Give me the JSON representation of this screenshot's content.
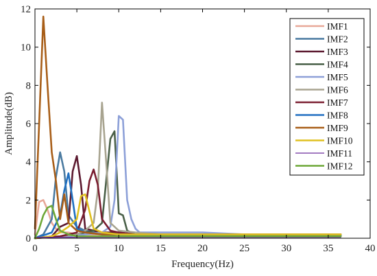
{
  "chart_data": {
    "type": "line",
    "title": "",
    "xlabel": "Frequency(Hz)",
    "ylabel": "Amplitude(dB)",
    "xlim": [
      0,
      40
    ],
    "ylim": [
      0,
      12
    ],
    "xticks": [
      "0",
      "5",
      "10",
      "15",
      "20",
      "25",
      "30",
      "35",
      "40"
    ],
    "yticks": [
      "0",
      "2",
      "4",
      "6",
      "8",
      "10",
      "12"
    ],
    "grid": false,
    "legend_position": "top-right",
    "series": [
      {
        "name": "IMF1",
        "color": "#e8a898",
        "x": [
          0,
          0.5,
          1,
          1.5,
          2,
          2.5,
          3,
          4,
          5,
          6,
          8,
          10,
          12,
          15,
          20,
          25,
          30,
          35,
          36.5
        ],
        "y": [
          0.2,
          1.9,
          2.0,
          1.5,
          0.8,
          0.5,
          0.3,
          0.3,
          0.2,
          0.2,
          0.2,
          0.15,
          0.2,
          0.15,
          0.15,
          0.15,
          0.15,
          0.15,
          0.15
        ]
      },
      {
        "name": "IMF2",
        "color": "#4a7aa0",
        "x": [
          0,
          1,
          2,
          2.5,
          3,
          3.5,
          4,
          5,
          6,
          7,
          8,
          10,
          12,
          15,
          20,
          25,
          30,
          35,
          36.5
        ],
        "y": [
          0,
          0.2,
          1.0,
          3.2,
          4.5,
          3.5,
          1.2,
          0.6,
          0.4,
          0.3,
          0.3,
          0.2,
          0.2,
          0.2,
          0.2,
          0.2,
          0.2,
          0.2,
          0.2
        ]
      },
      {
        "name": "IMF3",
        "color": "#5c1a30",
        "x": [
          0,
          2,
          3,
          4,
          4.5,
          5,
          5.5,
          6,
          7,
          8,
          10,
          12,
          15,
          20,
          25,
          30,
          35,
          36.5
        ],
        "y": [
          0,
          0.1,
          0.6,
          0.8,
          3.5,
          4.3,
          2.8,
          0.5,
          0.4,
          0.3,
          0.3,
          0.2,
          0.2,
          0.2,
          0.2,
          0.2,
          0.2,
          0.2
        ]
      },
      {
        "name": "IMF4",
        "color": "#4a6048",
        "x": [
          0,
          3,
          5,
          6,
          7,
          8,
          8.5,
          9,
          9.5,
          10,
          10.5,
          11,
          12,
          15,
          20,
          25,
          30,
          35,
          36.5
        ],
        "y": [
          0,
          0.1,
          0.2,
          0.3,
          0.4,
          0.8,
          3.0,
          5.2,
          5.6,
          1.3,
          1.2,
          0.4,
          0.2,
          0.2,
          0.2,
          0.2,
          0.2,
          0.2,
          0.2
        ]
      },
      {
        "name": "IMF5",
        "color": "#8da0d8",
        "x": [
          0,
          4,
          6,
          8,
          9,
          9.5,
          10,
          10.5,
          11,
          11.5,
          12,
          12.5,
          15,
          20,
          25,
          30,
          35,
          36.5
        ],
        "y": [
          0,
          0.1,
          0.2,
          0.3,
          0.6,
          2.0,
          6.4,
          6.2,
          2.0,
          1.0,
          0.5,
          0.3,
          0.3,
          0.3,
          0.2,
          0.2,
          0.2,
          0.2
        ]
      },
      {
        "name": "IMF6",
        "color": "#a8a490",
        "x": [
          0,
          3,
          5,
          6,
          7,
          7.5,
          8,
          8.5,
          9,
          10,
          12,
          15,
          20,
          25,
          30,
          35,
          36.5
        ],
        "y": [
          0,
          0.1,
          0.2,
          0.4,
          0.8,
          2.5,
          7.1,
          4.0,
          0.8,
          0.4,
          0.3,
          0.2,
          0.2,
          0.2,
          0.2,
          0.2,
          0.2
        ]
      },
      {
        "name": "IMF7",
        "color": "#7a1e30",
        "x": [
          0,
          3,
          5,
          6,
          6.5,
          7,
          7.5,
          8,
          9,
          10,
          12,
          15,
          20,
          25,
          30,
          35,
          36.5
        ],
        "y": [
          0,
          0.1,
          0.3,
          1.5,
          3.0,
          3.6,
          2.8,
          1.0,
          0.4,
          0.3,
          0.2,
          0.2,
          0.2,
          0.2,
          0.2,
          0.2,
          0.2
        ]
      },
      {
        "name": "IMF8",
        "color": "#1f6fc0",
        "x": [
          0,
          2,
          3,
          3.5,
          4,
          4.5,
          5,
          6,
          8,
          10,
          12,
          15,
          20,
          25,
          30,
          35,
          36.5
        ],
        "y": [
          0,
          0.3,
          1.2,
          2.5,
          3.4,
          2.0,
          0.5,
          0.3,
          0.2,
          0.2,
          0.15,
          0.15,
          0.15,
          0.15,
          0.15,
          0.15,
          0.15
        ]
      },
      {
        "name": "IMF9",
        "color": "#a85e18",
        "x": [
          0,
          0.5,
          1,
          1.5,
          2,
          2.5,
          3,
          3.5,
          4,
          5,
          6,
          8,
          10,
          15,
          20,
          25,
          30,
          35,
          36.5
        ],
        "y": [
          0.5,
          6.0,
          11.6,
          8.0,
          4.5,
          3.0,
          1.0,
          2.3,
          0.8,
          0.4,
          0.3,
          0.2,
          0.2,
          0.2,
          0.2,
          0.2,
          0.2,
          0.2,
          0.2
        ]
      },
      {
        "name": "IMF10",
        "color": "#e0c020",
        "x": [
          0,
          2,
          3,
          4,
          5,
          5.5,
          6,
          6.5,
          7,
          8,
          10,
          12,
          15,
          20,
          25,
          30,
          35,
          36.5
        ],
        "y": [
          0,
          0.1,
          0.3,
          0.6,
          1.0,
          2.2,
          2.3,
          1.4,
          0.5,
          0.3,
          0.2,
          0.2,
          0.2,
          0.2,
          0.2,
          0.2,
          0.2,
          0.2
        ]
      },
      {
        "name": "IMF11",
        "color": "#6a2a9a",
        "x": [
          0,
          5,
          10,
          15,
          20,
          25,
          30,
          35,
          36.5
        ],
        "y": [
          0.05,
          0.05,
          0.05,
          0.05,
          0.05,
          0.05,
          0.05,
          0.05,
          0.05
        ]
      },
      {
        "name": "IMF12",
        "color": "#6ea838",
        "x": [
          0,
          0.5,
          1,
          1.5,
          2,
          2.5,
          3,
          4,
          5,
          8,
          10,
          15,
          20,
          25,
          30,
          35,
          36.5
        ],
        "y": [
          0,
          0.5,
          1.2,
          1.6,
          1.7,
          1.0,
          0.4,
          0.2,
          0.1,
          0.1,
          0.1,
          0.1,
          0.1,
          0.1,
          0.1,
          0.1,
          0.1
        ]
      }
    ]
  }
}
